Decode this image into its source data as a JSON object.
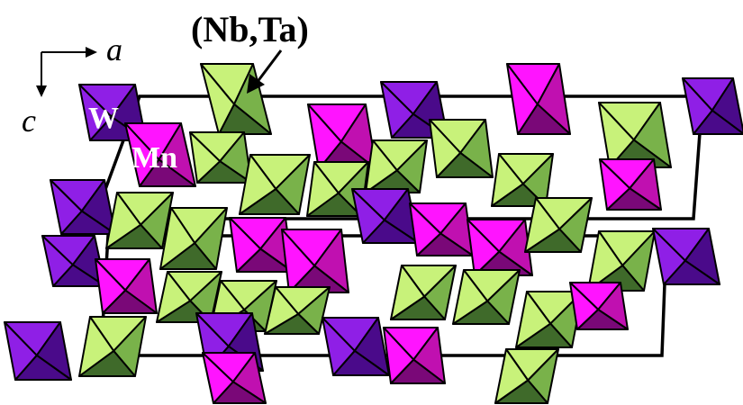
{
  "labels": {
    "nbta": "(Nb,Ta)",
    "w": "W",
    "mn": "Mn",
    "axis_a": "a",
    "axis_c": "c"
  },
  "colors": {
    "w_light": "#8f1fe6",
    "w_dark": "#4a0a8a",
    "mn_light": "#ff14ff",
    "mn_mid": "#c010b0",
    "mn_dark": "#7a0878",
    "nb_light": "#c8f27a",
    "nb_mid": "#79b24a",
    "nb_dark": "#3f6a2a",
    "label_white": "#ffffff",
    "label_black": "#000000"
  }
}
